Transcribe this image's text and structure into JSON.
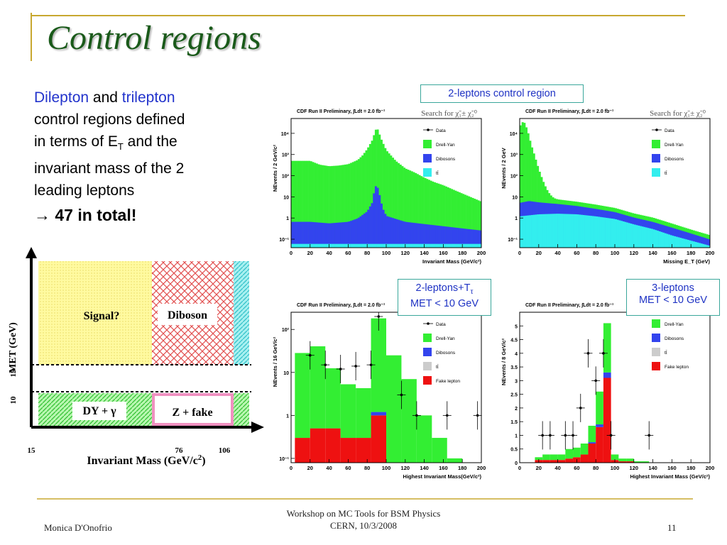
{
  "slide": {
    "title": "Control regions",
    "intro": {
      "word1": "Dilepton",
      "and": "and",
      "word2": "trilepton",
      "line2": "control regions defined",
      "line3a": "in terms of E",
      "line3sub": "T",
      "line3b": "and the",
      "line4": "invariant mass of the 2",
      "line5": "leading leptons"
    },
    "total_arrow": "→",
    "total": "47 in total!",
    "colors": {
      "title": "#1a5a1a",
      "accent_blue": "#2233cc",
      "callout_border": "#3aa79b",
      "rule_gold": "#c8a830"
    }
  },
  "callouts": {
    "c1": "2-leptons control region",
    "c2_line1": "2-leptons+T",
    "c2_sub": "τ",
    "c2_line2": "MET < 10 GeV",
    "c3_line1": "3-leptons",
    "c3_line2": "MET < 10 GeV"
  },
  "schematic": {
    "ylabel": "MET (GeV)",
    "xlabel": "Invariant Mass (GeV/c",
    "xlabel_sup": "2",
    "xlabel_close": ")",
    "yticks": [
      "10",
      "15"
    ],
    "xticks": [
      "15",
      "76",
      "106"
    ],
    "region_signal": "Signal?",
    "region_diboson": "Diboson",
    "region_dy": "DY + γ",
    "region_zfake": "Z + fake"
  },
  "footer": {
    "author": "Monica D'Onofrio",
    "line1": "Workshop on MC Tools for BSM Physics",
    "line2": "CERN, 10/3/2008",
    "page": "11"
  },
  "chart_data": [
    {
      "type": "bar",
      "header": "CDF Run II Preliminary,",
      "lumi": "∫Ldt = 2.0 fb⁻¹",
      "search_label": "Search for χ̃₁± χ̃₂⁰",
      "ylabel": "NEvents / 2 GeV/c²",
      "xlabel": "Invariant Mass (GeV/c²)",
      "log": true,
      "xlim": [
        0,
        200
      ],
      "ylim_log10": [
        -1.4,
        4.7
      ],
      "yticks": [
        "10⁻¹",
        "1",
        "10",
        "10²",
        "10³",
        "10⁴"
      ],
      "xticks": [
        "0",
        "20",
        "40",
        "60",
        "80",
        "100",
        "120",
        "140",
        "160",
        "180",
        "200"
      ],
      "legend": [
        "Data",
        "Drell-Yan",
        "Dibosons",
        "tt̄"
      ],
      "legend_position": "top-right",
      "stack": [
        {
          "name": "Drell-Yan",
          "color": "#33ee33",
          "points": [
            [
              20,
              500
            ],
            [
              30,
              330
            ],
            [
              40,
              280
            ],
            [
              50,
              300
            ],
            [
              60,
              350
            ],
            [
              70,
              550
            ],
            [
              75,
              900
            ],
            [
              80,
              1800
            ],
            [
              85,
              4500
            ],
            [
              90,
              20000
            ],
            [
              95,
              5000
            ],
            [
              100,
              1600
            ],
            [
              110,
              500
            ],
            [
              120,
              220
            ],
            [
              130,
              140
            ],
            [
              140,
              80
            ],
            [
              150,
              50
            ],
            [
              160,
              35
            ],
            [
              170,
              22
            ],
            [
              180,
              14
            ],
            [
              190,
              9
            ],
            [
              199,
              6
            ]
          ]
        },
        {
          "name": "Dibosons",
          "color": "#3344ee",
          "points": [
            [
              20,
              0.6
            ],
            [
              40,
              0.5
            ],
            [
              60,
              0.6
            ],
            [
              70,
              0.9
            ],
            [
              80,
              2
            ],
            [
              85,
              5
            ],
            [
              88,
              25
            ],
            [
              90,
              40
            ],
            [
              93,
              12
            ],
            [
              96,
              3
            ],
            [
              100,
              1.2
            ],
            [
              120,
              0.6
            ],
            [
              160,
              0.35
            ],
            [
              199,
              0.2
            ]
          ]
        },
        {
          "name": "tt̄",
          "color": "#33eeee",
          "points": [
            [
              20,
              0.06
            ],
            [
              100,
              0.06
            ],
            [
              199,
              0.06
            ]
          ]
        }
      ],
      "data_points": []
    },
    {
      "type": "bar",
      "header": "CDF Run II Preliminary,",
      "lumi": "∫Ldt = 2.0 fb⁻¹",
      "search_label": "Search for χ̃₁± χ̃₂⁰",
      "ylabel": "NEvents / 2 GeV",
      "xlabel": "Missing E_T (GeV)",
      "log": true,
      "xlim": [
        0,
        200
      ],
      "ylim_log10": [
        -1.4,
        4.7
      ],
      "yticks": [
        "10⁻¹",
        "1",
        "10",
        "10²",
        "10³",
        "10⁴"
      ],
      "xticks": [
        "0",
        "20",
        "40",
        "60",
        "80",
        "100",
        "120",
        "140",
        "160",
        "180",
        "200"
      ],
      "legend": [
        "Data",
        "Drell-Yan",
        "Dibosons",
        "tt̄"
      ],
      "legend_position": "top-right",
      "stack": [
        {
          "name": "Drell-Yan",
          "color": "#33ee33",
          "points": [
            [
              0,
              20000
            ],
            [
              4,
              40000
            ],
            [
              8,
              15000
            ],
            [
              12,
              3000
            ],
            [
              16,
              800
            ],
            [
              20,
              200
            ],
            [
              24,
              60
            ],
            [
              28,
              20
            ],
            [
              32,
              8
            ],
            [
              36,
              4
            ],
            [
              40,
              3
            ],
            [
              60,
              2.2
            ],
            [
              80,
              1.6
            ],
            [
              100,
              1.1
            ],
            [
              120,
              0.6
            ],
            [
              140,
              0.4
            ],
            [
              160,
              0.2
            ],
            [
              180,
              0.1
            ],
            [
              199,
              0.06
            ]
          ]
        },
        {
          "name": "Dibosons",
          "color": "#3344ee",
          "points": [
            [
              0,
              4
            ],
            [
              10,
              5
            ],
            [
              20,
              4
            ],
            [
              40,
              3
            ],
            [
              60,
              2.2
            ],
            [
              80,
              1.5
            ],
            [
              100,
              1.0
            ],
            [
              120,
              0.55
            ],
            [
              140,
              0.35
            ],
            [
              160,
              0.2
            ],
            [
              180,
              0.1
            ],
            [
              199,
              0.05
            ]
          ]
        },
        {
          "name": "tt̄",
          "color": "#33eeee",
          "points": [
            [
              0,
              1.2
            ],
            [
              20,
              1.5
            ],
            [
              40,
              1.6
            ],
            [
              60,
              1.5
            ],
            [
              80,
              1.2
            ],
            [
              100,
              0.9
            ],
            [
              120,
              0.5
            ],
            [
              140,
              0.3
            ],
            [
              160,
              0.15
            ],
            [
              199,
              0.05
            ]
          ]
        }
      ],
      "data_points": []
    },
    {
      "type": "bar",
      "header": "CDF Run II Preliminary,",
      "lumi": "∫Ldt = 2.0 fb⁻¹",
      "search_label": "Search for χ̃₁± χ̃₂⁰",
      "ylabel": "NEvents / 16 GeV/c²",
      "xlabel": "Highest Invariant Mass(GeV/c²)",
      "log": true,
      "xlim": [
        0,
        200
      ],
      "ylim_log10": [
        -1.1,
        2.4
      ],
      "yticks": [
        "10⁻¹",
        "1",
        "10",
        "10²"
      ],
      "xticks": [
        "0",
        "20",
        "40",
        "60",
        "80",
        "100",
        "120",
        "140",
        "160",
        "180",
        "200"
      ],
      "legend": [
        "Data",
        "Drell-Yan",
        "Dibosons",
        "tt̄",
        "Fake lepton"
      ],
      "legend_position": "top-right",
      "bins": [
        12,
        28,
        44,
        60,
        76,
        92,
        108,
        124,
        140,
        156,
        172,
        188
      ],
      "stack_bins": [
        {
          "name": "Fake lepton",
          "color": "#ee1111",
          "values": [
            0.3,
            0.5,
            0.5,
            0.3,
            0.3,
            1.0,
            0,
            0,
            0,
            0,
            0,
            0
          ]
        },
        {
          "name": "Dibosons",
          "color": "#3344ee",
          "values": [
            0,
            0,
            0,
            0,
            0,
            0.2,
            0,
            0,
            0,
            0,
            0,
            0
          ]
        },
        {
          "name": "Drell-Yan",
          "color": "#33ee33",
          "values": [
            28,
            40,
            12,
            5,
            4,
            180,
            25,
            7,
            1.0,
            0.3,
            0.1,
            0
          ]
        }
      ],
      "data_points": [
        [
          20,
          25
        ],
        [
          36,
          15
        ],
        [
          52,
          12
        ],
        [
          68,
          14
        ],
        [
          84,
          15
        ],
        [
          92,
          200
        ],
        [
          116,
          3
        ],
        [
          132,
          1
        ],
        [
          164,
          1
        ],
        [
          196,
          1
        ]
      ]
    },
    {
      "type": "bar",
      "header": "CDF Run II Preliminary,",
      "lumi": "∫Ldt = 2.0 fb⁻¹",
      "search_label": "Search for χ̃₁± χ̃₂⁰",
      "ylabel": "NEvents / 8 GeV/c²",
      "xlabel": "Highest Invariant Mass (GeV/c²)",
      "log": false,
      "xlim": [
        0,
        200
      ],
      "ylim": [
        0,
        5.5
      ],
      "yticks": [
        "0",
        "0.5",
        "1",
        "1.5",
        "2",
        "2.5",
        "3",
        "3.5",
        "4",
        "4.5",
        "5"
      ],
      "xticks": [
        "0",
        "20",
        "40",
        "60",
        "80",
        "100",
        "120",
        "140",
        "160",
        "180",
        "200"
      ],
      "legend": [
        "Drell-Yan",
        "Dibosons",
        "tt̄",
        "Fake lepton"
      ],
      "legend_position": "top-right",
      "bins": [
        20,
        28,
        36,
        44,
        52,
        60,
        68,
        76,
        84,
        92,
        100,
        108,
        116,
        124,
        132,
        140,
        148
      ],
      "stack_bins": [
        {
          "name": "Fake lepton",
          "color": "#ee1111",
          "values": [
            0.1,
            0.1,
            0.1,
            0.1,
            0.15,
            0.2,
            0.3,
            0.7,
            1.3,
            3.1,
            0.1,
            0.05,
            0.05,
            0,
            0,
            0,
            0
          ]
        },
        {
          "name": "Dibosons",
          "color": "#3344ee",
          "values": [
            0,
            0,
            0,
            0,
            0,
            0,
            0,
            0.05,
            0.1,
            0.2,
            0,
            0,
            0,
            0,
            0,
            0,
            0
          ]
        },
        {
          "name": "Drell-Yan",
          "color": "#33ee33",
          "values": [
            0.1,
            0.2,
            0.2,
            0.2,
            0.35,
            0.35,
            0.4,
            0.6,
            1.2,
            1.8,
            0.2,
            0.1,
            0.1,
            0.05,
            0.05,
            0,
            0
          ]
        }
      ],
      "data_points": [
        [
          24,
          1
        ],
        [
          32,
          1
        ],
        [
          48,
          1
        ],
        [
          56,
          1
        ],
        [
          64,
          2
        ],
        [
          72,
          4
        ],
        [
          80,
          3
        ],
        [
          88,
          4
        ],
        [
          96,
          1
        ],
        [
          136,
          1
        ]
      ]
    }
  ]
}
